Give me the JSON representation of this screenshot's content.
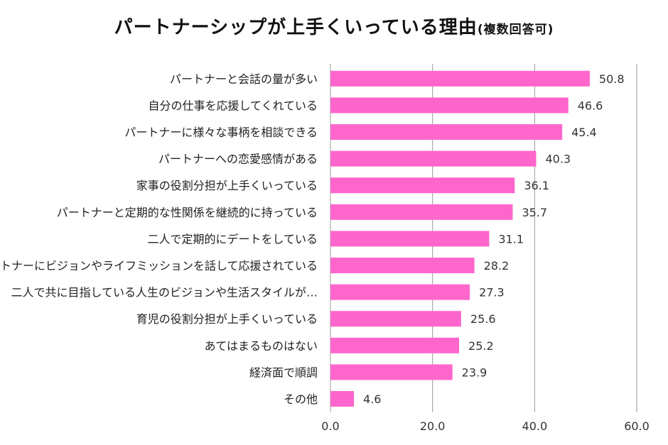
{
  "chart_data": {
    "type": "bar",
    "orientation": "horizontal",
    "title": "パートナーシップが上手くいっている理由",
    "subtitle": "(複数回答可)",
    "categories": [
      "パートナーと会話の量が多い",
      "自分の仕事を応援してくれている",
      "パートナーに様々な事柄を相談できる",
      "パートナーへの恋愛感情がある",
      "家事の役割分担が上手くいっている",
      "パートナーと定期的な性関係を継続的に持っている",
      "二人で定期的にデートをしている",
      "パートナーにビジョンやライフミッションを話して応援されている",
      "二人で共に目指している人生のビジョンや生活スタイルが…",
      "育児の役割分担が上手くいっている",
      "あてはまるものはない",
      "経済面で順調",
      "その他"
    ],
    "values": [
      50.8,
      46.6,
      45.4,
      40.3,
      36.1,
      35.7,
      31.1,
      28.2,
      27.3,
      25.6,
      25.2,
      23.9,
      4.6
    ],
    "value_labels": [
      "50.8",
      "46.6",
      "45.4",
      "40.3",
      "36.1",
      "35.7",
      "31.1",
      "28.2",
      "27.3",
      "25.6",
      "25.2",
      "23.9",
      "4.6"
    ],
    "xlim": [
      0,
      60
    ],
    "xticks": [
      0,
      20,
      40,
      60
    ],
    "xtick_labels": [
      "0.0",
      "20.0",
      "40.0",
      "60.0"
    ],
    "grid": true,
    "bar_color": "#ff66cc",
    "grid_color": "#9a9a9a"
  }
}
